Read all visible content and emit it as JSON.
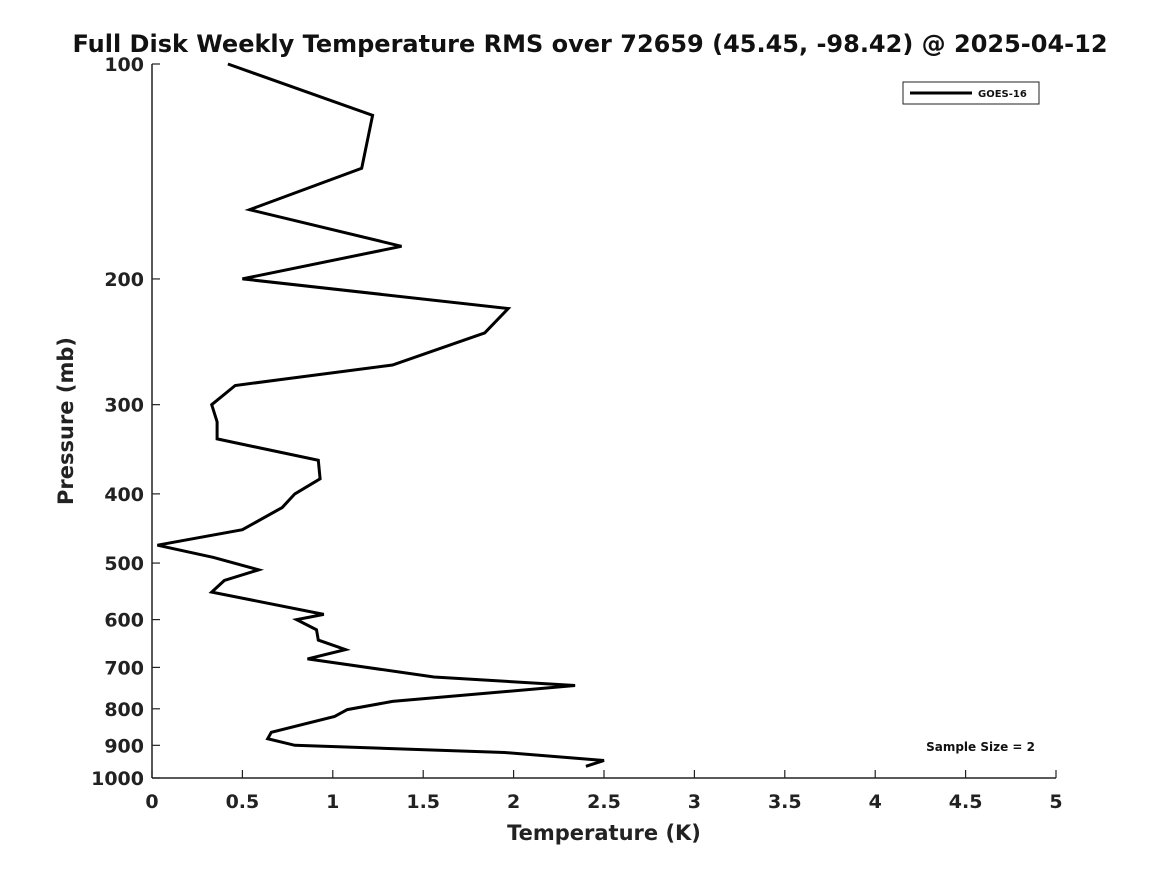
{
  "chart_data": {
    "type": "line",
    "title": "Full Disk Weekly Temperature RMS over 72659 (45.45, -98.42) @ 2025-04-12",
    "xlabel": "Temperature (K)",
    "ylabel": "Pressure (mb)",
    "xlim": [
      0,
      5
    ],
    "ylim": [
      1000,
      100
    ],
    "y_scale": "log",
    "y_reversed": true,
    "xticks": [
      0,
      0.5,
      1,
      1.5,
      2,
      2.5,
      3,
      3.5,
      4,
      4.5,
      5
    ],
    "xtick_labels": [
      "0",
      "0.5",
      "1",
      "1.5",
      "2",
      "2.5",
      "3",
      "3.5",
      "4",
      "4.5",
      "5"
    ],
    "yticks": [
      100,
      200,
      300,
      400,
      500,
      600,
      700,
      800,
      900,
      1000
    ],
    "ytick_labels": [
      "100",
      "200",
      "300",
      "400",
      "500",
      "600",
      "700",
      "800",
      "900",
      "1000"
    ],
    "grid": false,
    "legend_position": "top-right",
    "annotation": "Sample Size = 2",
    "series": [
      {
        "name": "GOES-16",
        "color": "#000000",
        "points": [
          {
            "x": 0.42,
            "y": 100
          },
          {
            "x": 1.22,
            "y": 118
          },
          {
            "x": 1.16,
            "y": 140
          },
          {
            "x": 0.54,
            "y": 160
          },
          {
            "x": 1.38,
            "y": 180
          },
          {
            "x": 0.5,
            "y": 200
          },
          {
            "x": 1.97,
            "y": 220
          },
          {
            "x": 1.84,
            "y": 238
          },
          {
            "x": 1.33,
            "y": 264
          },
          {
            "x": 0.46,
            "y": 282
          },
          {
            "x": 0.33,
            "y": 300
          },
          {
            "x": 0.36,
            "y": 317
          },
          {
            "x": 0.36,
            "y": 335
          },
          {
            "x": 0.92,
            "y": 359
          },
          {
            "x": 0.93,
            "y": 381
          },
          {
            "x": 0.79,
            "y": 400
          },
          {
            "x": 0.72,
            "y": 418
          },
          {
            "x": 0.5,
            "y": 449
          },
          {
            "x": 0.03,
            "y": 472
          },
          {
            "x": 0.34,
            "y": 491
          },
          {
            "x": 0.59,
            "y": 511
          },
          {
            "x": 0.4,
            "y": 529
          },
          {
            "x": 0.33,
            "y": 549
          },
          {
            "x": 0.95,
            "y": 590
          },
          {
            "x": 0.8,
            "y": 600
          },
          {
            "x": 0.91,
            "y": 620
          },
          {
            "x": 0.92,
            "y": 641
          },
          {
            "x": 1.07,
            "y": 661
          },
          {
            "x": 0.86,
            "y": 681
          },
          {
            "x": 1.56,
            "y": 722
          },
          {
            "x": 2.34,
            "y": 742
          },
          {
            "x": 1.33,
            "y": 781
          },
          {
            "x": 1.08,
            "y": 802
          },
          {
            "x": 1.01,
            "y": 820
          },
          {
            "x": 0.66,
            "y": 863
          },
          {
            "x": 0.64,
            "y": 881
          },
          {
            "x": 0.79,
            "y": 900
          },
          {
            "x": 1.95,
            "y": 921
          },
          {
            "x": 2.5,
            "y": 945
          },
          {
            "x": 2.4,
            "y": 963
          }
        ]
      }
    ]
  }
}
